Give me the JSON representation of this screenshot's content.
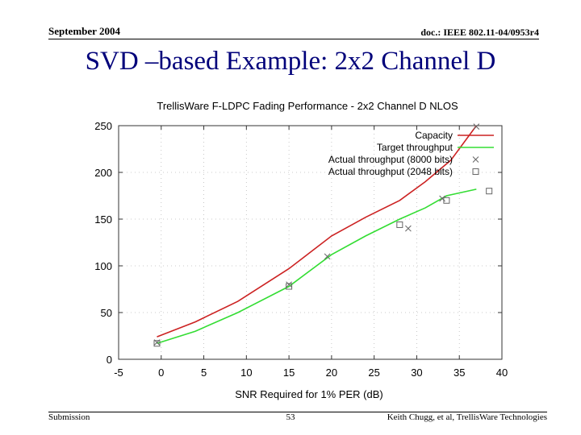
{
  "header": {
    "date": "September 2004",
    "doc": "doc.: IEEE 802.11-04/0953r4"
  },
  "slide_title": "SVD –based Example: 2x2 Channel D",
  "footer": {
    "left": "Submission",
    "page": "53",
    "right": "Keith Chugg, et al, TrellisWare Technologies"
  },
  "colors": {
    "capacity": "#cc2222",
    "target": "#33dd33",
    "actual": "#666666"
  },
  "chart_data": {
    "type": "line",
    "title": "TrellisWare F-LDPC Fading Performance - 2x2 Channel D NLOS",
    "xlabel": "SNR Required for 1% PER (dB)",
    "ylabel": "",
    "xlim": [
      -5,
      40
    ],
    "ylim": [
      0,
      250
    ],
    "xticks": [
      -5,
      0,
      5,
      10,
      15,
      20,
      25,
      30,
      35,
      40
    ],
    "yticks": [
      0,
      50,
      100,
      150,
      200,
      250
    ],
    "grid": true,
    "legend_position": "top-right",
    "series": [
      {
        "name": "Capacity",
        "color": "#cc2222",
        "marker": "none",
        "points": [
          [
            -0.5,
            24
          ],
          [
            4,
            40
          ],
          [
            9,
            62
          ],
          [
            15,
            97
          ],
          [
            20,
            132
          ],
          [
            24,
            152
          ],
          [
            28,
            170
          ],
          [
            31,
            190
          ],
          [
            34,
            213
          ],
          [
            37,
            250
          ]
        ]
      },
      {
        "name": "Target throughput",
        "color": "#33dd33",
        "marker": "none",
        "points": [
          [
            -0.5,
            17
          ],
          [
            4,
            30
          ],
          [
            9,
            50
          ],
          [
            15,
            78
          ],
          [
            20,
            112
          ],
          [
            24,
            132
          ],
          [
            28,
            150
          ],
          [
            31,
            162
          ],
          [
            33.5,
            175
          ],
          [
            37,
            182
          ]
        ]
      },
      {
        "name": "Actual throughput (8000 bits)",
        "color": "#666666",
        "marker": "x",
        "points": [
          [
            -0.5,
            18
          ],
          [
            15,
            80
          ],
          [
            19.5,
            110
          ],
          [
            29,
            140
          ],
          [
            33,
            172
          ],
          [
            37,
            249
          ]
        ]
      },
      {
        "name": "Actual throughput (2048 bits)",
        "color": "#666666",
        "marker": "square",
        "points": [
          [
            -0.5,
            17
          ],
          [
            15,
            78
          ],
          [
            28,
            144
          ],
          [
            33.5,
            170
          ],
          [
            38.5,
            180
          ]
        ]
      }
    ]
  }
}
